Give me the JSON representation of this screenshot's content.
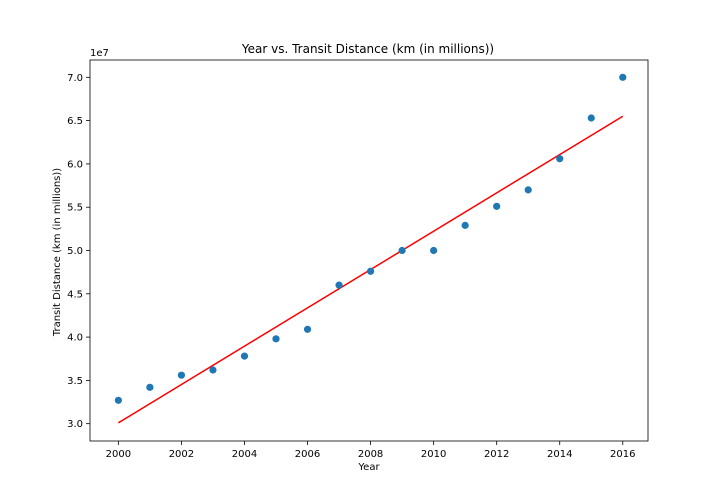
{
  "chart_data": {
    "type": "scatter",
    "title": "Year vs. Transit Distance (km (in millions))",
    "xlabel": "Year",
    "ylabel": "Transit Distance (km (in millions))",
    "y_offset_label": "1e7",
    "xlim": [
      1999.1,
      2016.8
    ],
    "ylim": [
      2.8,
      7.2
    ],
    "x_ticks": [
      2000,
      2002,
      2004,
      2006,
      2008,
      2010,
      2012,
      2014,
      2016
    ],
    "y_ticks": [
      3.0,
      3.5,
      4.0,
      4.5,
      5.0,
      5.5,
      6.0,
      6.5,
      7.0
    ],
    "y_tick_labels": [
      "3.0",
      "3.5",
      "4.0",
      "4.5",
      "5.0",
      "5.5",
      "6.0",
      "6.5",
      "7.0"
    ],
    "grid": false,
    "series": [
      {
        "kind": "scatter",
        "color": "#1f77b4",
        "points": [
          {
            "x": 2000,
            "y": 3.27
          },
          {
            "x": 2001,
            "y": 3.42
          },
          {
            "x": 2002,
            "y": 3.56
          },
          {
            "x": 2003,
            "y": 3.62
          },
          {
            "x": 2004,
            "y": 3.78
          },
          {
            "x": 2005,
            "y": 3.98
          },
          {
            "x": 2006,
            "y": 4.09
          },
          {
            "x": 2007,
            "y": 4.6
          },
          {
            "x": 2008,
            "y": 4.76
          },
          {
            "x": 2009,
            "y": 5.0
          },
          {
            "x": 2010,
            "y": 5.0
          },
          {
            "x": 2011,
            "y": 5.29
          },
          {
            "x": 2012,
            "y": 5.51
          },
          {
            "x": 2013,
            "y": 5.7
          },
          {
            "x": 2014,
            "y": 6.06
          },
          {
            "x": 2015,
            "y": 6.53
          },
          {
            "x": 2016,
            "y": 7.0
          }
        ]
      },
      {
        "kind": "fit-line",
        "color": "#ff0000",
        "points": [
          {
            "x": 2000,
            "y": 3.01
          },
          {
            "x": 2016,
            "y": 6.55
          }
        ]
      }
    ]
  }
}
